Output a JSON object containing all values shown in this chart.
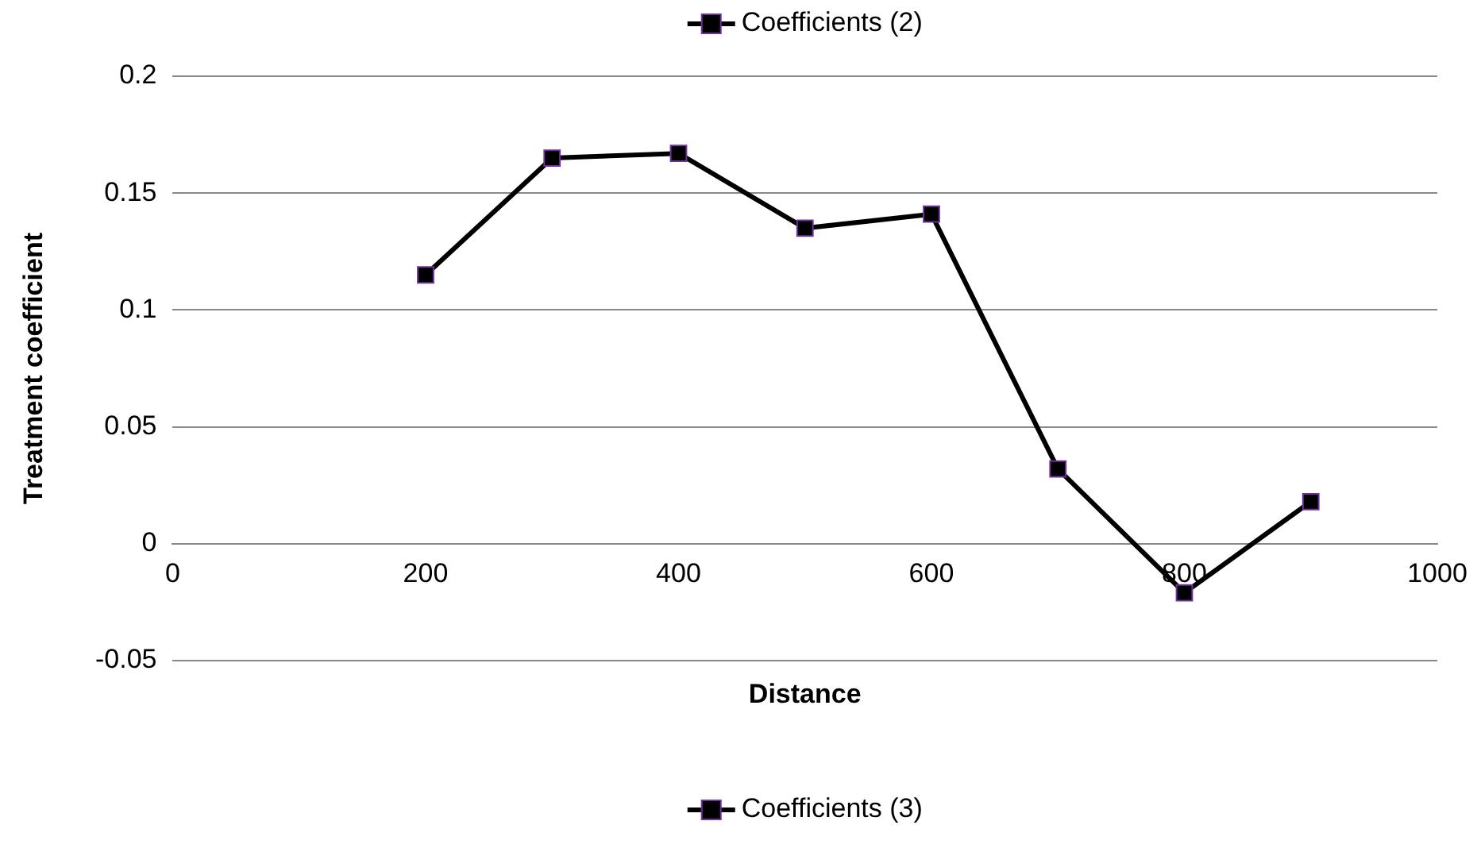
{
  "chart_data": {
    "type": "line",
    "xlabel": "Distance",
    "ylabel": "Treatment coefficient",
    "x": [
      200,
      300,
      400,
      500,
      600,
      700,
      800,
      900
    ],
    "series": [
      {
        "name": "Coefficients (2)",
        "color": "#000000",
        "values": [
          0.115,
          0.165,
          0.167,
          0.135,
          0.141,
          0.032,
          -0.021,
          0.018
        ]
      },
      {
        "name": "Coefficients (3)",
        "color": "#000000",
        "values": [
          null,
          null,
          null,
          null,
          null,
          null,
          null,
          null
        ]
      }
    ],
    "xlim": [
      0,
      1000
    ],
    "xticks": [
      0,
      200,
      400,
      600,
      800,
      1000
    ],
    "ylim": [
      -0.05,
      0.2
    ],
    "yticks": [
      -0.05,
      0,
      0.05,
      0.1,
      0.15,
      0.2
    ],
    "grid": "y",
    "legend": [
      "top",
      "bottom"
    ],
    "marker": "square",
    "line_style": "solid"
  }
}
